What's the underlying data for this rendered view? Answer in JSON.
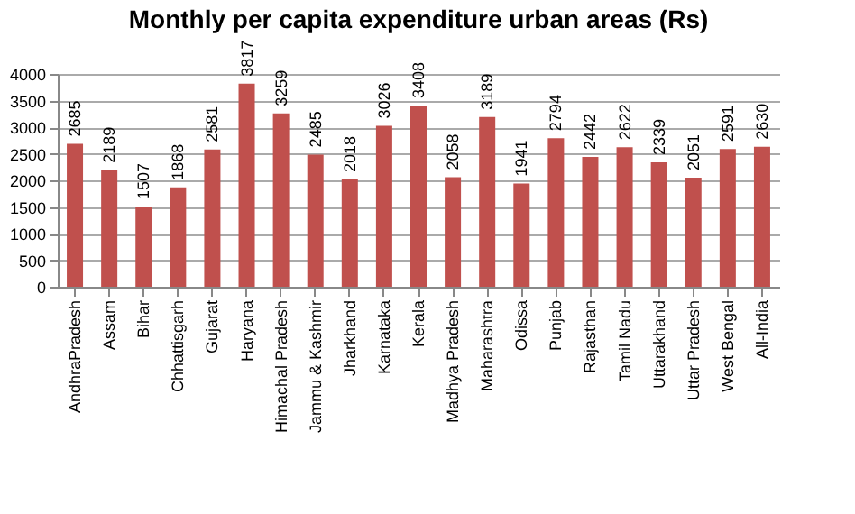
{
  "chart_data": {
    "type": "bar",
    "title": "Monthly per capita expenditure urban areas (Rs)",
    "categories": [
      "AndhraPradesh",
      "Assam",
      "Bihar",
      "Chhattisgarh",
      "Gujarat",
      "Haryana",
      "Himachal Pradesh",
      "Jammu & Kashmir",
      "Jharkhand",
      "Karnataka",
      "Kerala",
      "Madhya Pradesh",
      "Maharashtra",
      "Odissa",
      "Punjab",
      "Rajasthan",
      "Tamil Nadu",
      "Uttarakhand",
      "Uttar Pradesh",
      "West Bengal",
      "All-India"
    ],
    "values": [
      2685,
      2189,
      1507,
      1868,
      2581,
      3817,
      3259,
      2485,
      2018,
      3026,
      3408,
      2058,
      3189,
      1941,
      2794,
      2442,
      2622,
      2339,
      2051,
      2591,
      2630
    ],
    "color": "#c0504d",
    "ylim": [
      0,
      4000
    ],
    "yticks": [
      0,
      500,
      1000,
      1500,
      2000,
      2500,
      3000,
      3500,
      4000
    ],
    "grid": "y",
    "data_labels": true
  }
}
